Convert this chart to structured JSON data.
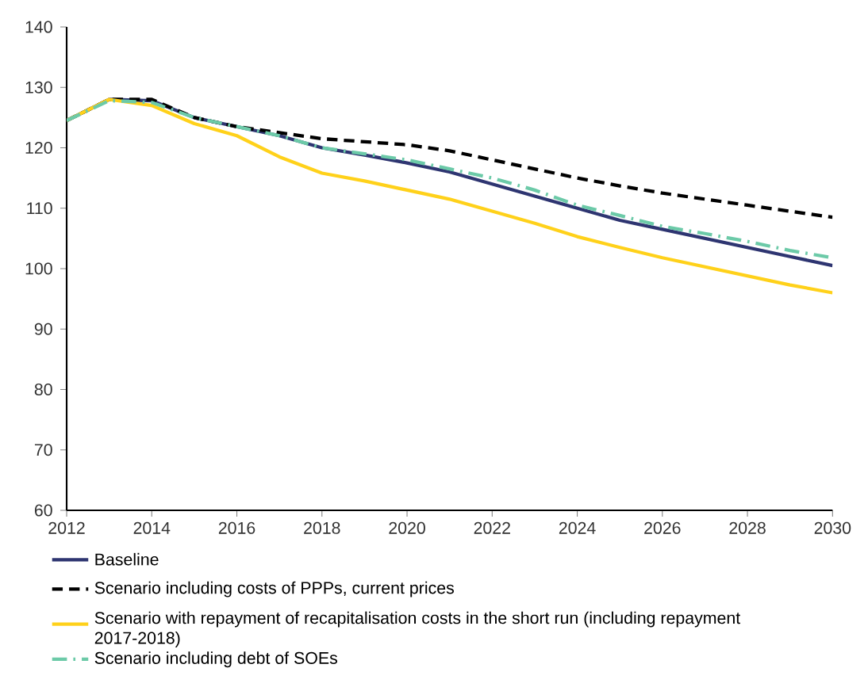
{
  "chart_data": {
    "type": "line",
    "x": [
      2012,
      2013,
      2014,
      2015,
      2016,
      2017,
      2018,
      2019,
      2020,
      2021,
      2022,
      2023,
      2024,
      2025,
      2026,
      2027,
      2028,
      2029,
      2030
    ],
    "series": [
      {
        "name": "Baseline",
        "color": "#2e3571",
        "line_style": "solid",
        "values": [
          124.5,
          128,
          127.8,
          125,
          123.5,
          122,
          120,
          118.8,
          117.5,
          116,
          114,
          112,
          110,
          108,
          106.5,
          105,
          103.5,
          102,
          100.5
        ]
      },
      {
        "name": "Scenario including costs of PPPs, current prices",
        "color": "#000000",
        "line_style": "dashed",
        "values": [
          124.5,
          128,
          128,
          125,
          123.5,
          122.5,
          121.5,
          121,
          120.5,
          119.5,
          118,
          116.5,
          115,
          113.7,
          112.5,
          111.5,
          110.5,
          109.5,
          108.5
        ]
      },
      {
        "name": "Scenario with repayment of recapitalisation costs in the short run (including repayment 2017-2018)",
        "color": "#ffd11a",
        "line_style": "solid",
        "values": [
          124.5,
          128,
          127,
          124,
          122,
          118.5,
          115.8,
          114.5,
          113,
          111.5,
          109.5,
          107.5,
          105.3,
          103.5,
          101.8,
          100.3,
          98.8,
          97.3,
          96
        ]
      },
      {
        "name": "Scenario including debt of SOEs",
        "color": "#6ccaa8",
        "line_style": "dashdot",
        "values": [
          124.5,
          127.8,
          127.5,
          125,
          123.5,
          122,
          120,
          119,
          118,
          116.5,
          115,
          113,
          110.5,
          108.8,
          107,
          105.8,
          104.5,
          103,
          101.8
        ]
      }
    ],
    "xlim": [
      2012,
      2030
    ],
    "xticks": [
      2012,
      2014,
      2016,
      2018,
      2020,
      2022,
      2024,
      2026,
      2028,
      2030
    ],
    "ylim": [
      60,
      140
    ],
    "yticks": [
      60,
      70,
      80,
      90,
      100,
      110,
      120,
      130,
      140
    ],
    "grid": false,
    "legend": "bottom",
    "marker": "none"
  }
}
